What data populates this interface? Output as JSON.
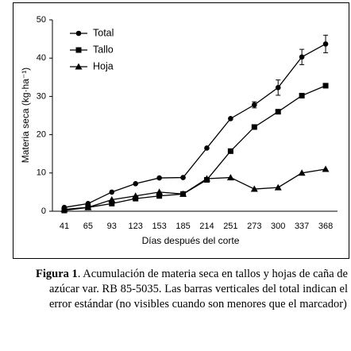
{
  "chart_data": {
    "type": "line",
    "xlabel": "Días después del corte",
    "ylabel": "Materia seca (kg·ha⁻¹)",
    "categories": [
      41,
      65,
      93,
      123,
      153,
      185,
      214,
      251,
      273,
      300,
      337,
      368
    ],
    "series": [
      {
        "name": "Total",
        "color": "#000000",
        "marker": "circle",
        "values": [
          1,
          2,
          5,
          7.2,
          8.7,
          8.8,
          16.5,
          24.2,
          27.8,
          32.3,
          40.3,
          43.7
        ],
        "errors": [
          null,
          null,
          null,
          null,
          null,
          null,
          null,
          null,
          0.8,
          2,
          2,
          2.3
        ]
      },
      {
        "name": "Tallo",
        "color": "#000000",
        "marker": "square",
        "values": [
          0.2,
          1,
          2,
          3.3,
          4,
          4.5,
          8.2,
          15.7,
          22,
          26,
          30.2,
          32.8
        ]
      },
      {
        "name": "Hoja",
        "color": "#000000",
        "marker": "triangle",
        "values": [
          0.5,
          1,
          3,
          4,
          5,
          4.5,
          8.5,
          8.8,
          5.8,
          6.2,
          10,
          11
        ]
      }
    ],
    "ylim": [
      0,
      50
    ],
    "yticks": [
      0,
      10,
      20,
      30,
      40,
      50
    ],
    "grid": false,
    "legend": "upper-left"
  },
  "caption": {
    "label": "Figura 1",
    "text": ". Acumulación de materia seca en tallos y hojas de caña de azúcar var. RB 85-5035. Las barras verticales del total indican el error estándar (no visibles cuando son menores que el marcador)"
  }
}
